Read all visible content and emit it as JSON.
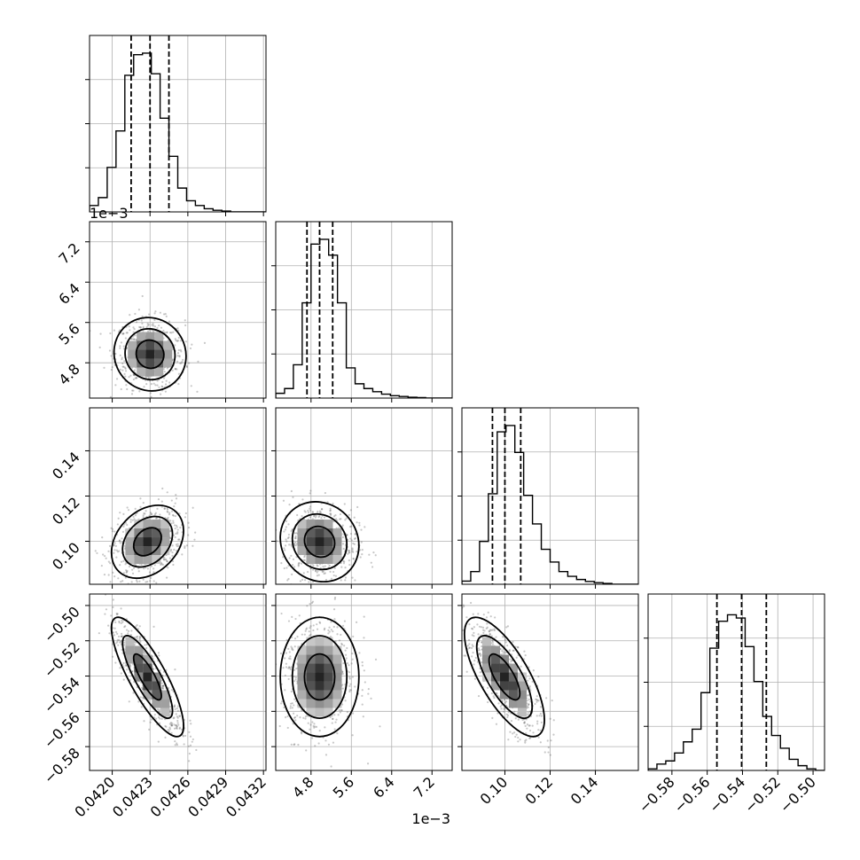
{
  "chart_data": {
    "type": "corner",
    "parameters": [
      {
        "ticks": [
          0.042,
          0.0423,
          0.0426,
          0.0429,
          0.0432
        ],
        "tick_labels": [
          "0.0420",
          "0.0423",
          "0.0426",
          "0.0429",
          "0.0432"
        ],
        "lim": [
          0.04182,
          0.04322
        ],
        "offset_text": "",
        "quantiles": [
          0.04215,
          0.0423,
          0.04245
        ],
        "hist": [
          0.04,
          0.09,
          0.28,
          0.51,
          0.86,
          0.99,
          1.0,
          0.87,
          0.59,
          0.35,
          0.15,
          0.07,
          0.04,
          0.02,
          0.01,
          0.005,
          0.0,
          0.0,
          0.0,
          0.0
        ]
      },
      {
        "ticks": [
          4.8,
          5.6,
          6.4,
          7.2
        ],
        "tick_labels": [
          "4.8",
          "5.6",
          "6.4",
          "7.2"
        ],
        "lim": [
          4.1,
          7.6
        ],
        "offset_text": "1e−3",
        "quantiles": [
          4.72,
          4.97,
          5.23
        ],
        "hist": [
          0.03,
          0.06,
          0.21,
          0.6,
          0.97,
          1.0,
          0.9,
          0.6,
          0.19,
          0.09,
          0.06,
          0.04,
          0.025,
          0.015,
          0.01,
          0.005,
          0.003,
          0.0,
          0.0,
          0.0
        ]
      },
      {
        "ticks": [
          0.1,
          0.12,
          0.14
        ],
        "tick_labels": [
          "0.10",
          "0.12",
          "0.14"
        ],
        "lim": [
          0.081,
          0.159
        ],
        "offset_text": "",
        "quantiles": [
          0.0945,
          0.1,
          0.107
        ],
        "hist": [
          0.02,
          0.08,
          0.27,
          0.57,
          0.96,
          1.0,
          0.83,
          0.56,
          0.38,
          0.22,
          0.14,
          0.08,
          0.05,
          0.03,
          0.018,
          0.01,
          0.005,
          0.0,
          0.0,
          0.0
        ]
      },
      {
        "ticks": [
          -0.58,
          -0.56,
          -0.54,
          -0.52,
          -0.5
        ],
        "tick_labels": [
          "−0.58",
          "−0.56",
          "−0.54",
          "−0.52",
          "−0.50"
        ],
        "lim": [
          -0.5935,
          -0.4935
        ],
        "offset_text": "",
        "quantiles": [
          -0.5545,
          -0.5405,
          -0.5265
        ],
        "hist": [
          0.01,
          0.04,
          0.06,
          0.11,
          0.18,
          0.26,
          0.49,
          0.77,
          0.94,
          0.98,
          0.96,
          0.78,
          0.56,
          0.34,
          0.22,
          0.14,
          0.07,
          0.03,
          0.01,
          0.0
        ]
      }
    ],
    "pairs": [
      {
        "row": 1,
        "col": 0,
        "mean": [
          0.0423,
          4.97
        ],
        "sd": [
          0.00011,
          0.28
        ],
        "rho": -0.05
      },
      {
        "row": 2,
        "col": 0,
        "mean": [
          0.04228,
          0.0998
        ],
        "sd": [
          0.00011,
          0.0062
        ],
        "rho": 0.3
      },
      {
        "row": 2,
        "col": 1,
        "mean": [
          4.97,
          0.0998
        ],
        "sd": [
          0.3,
          0.0068
        ],
        "rho": -0.1
      },
      {
        "row": 3,
        "col": 0,
        "mean": [
          0.04228,
          -0.5405
        ],
        "sd": [
          0.00011,
          0.013
        ],
        "rho": -0.82
      },
      {
        "row": 3,
        "col": 1,
        "mean": [
          4.97,
          -0.5405
        ],
        "sd": [
          0.3,
          0.013
        ],
        "rho": 0.0
      },
      {
        "row": 3,
        "col": 2,
        "mean": [
          0.0998,
          -0.5405
        ],
        "sd": [
          0.0068,
          0.013
        ],
        "rho": -0.72
      }
    ]
  }
}
